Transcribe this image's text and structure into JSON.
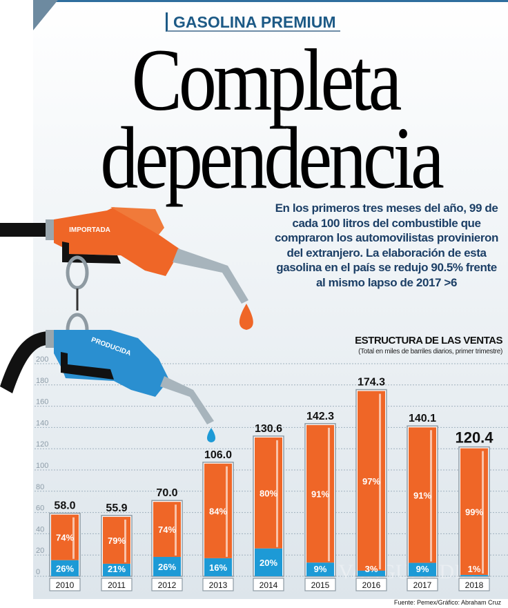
{
  "header": {
    "kicker": "GASOLINA PREMIUM",
    "title_line1": "Completa",
    "title_line2": "dependencia"
  },
  "lede": "En los primeros tres meses del año, 99 de cada 100 litros del combustible que compraron los automovilistas provinieron del extranjero. La elaboración de esta gasolina en el país se redujo 90.5% frente al mismo lapso de 2017 >6",
  "illustration": {
    "pump_imported_label": "IMPORTADA",
    "pump_produced_label": "PRODUCIDA"
  },
  "watermark": "VANGUARDIA",
  "colors": {
    "imported": "#ef6627",
    "produced": "#1d9ad6",
    "text": "#1c3f66"
  },
  "source": "Fuente: Pemex/Gráfico: Abraham Cruz",
  "chart_data": {
    "type": "bar",
    "title": "ESTRUCTURA DE LAS VENTAS",
    "subtitle": "(Total en miles de barriles diarios, primer trimestre)",
    "categories": [
      "2010",
      "2011",
      "2012",
      "2013",
      "2014",
      "2015",
      "2016",
      "2017",
      "2018"
    ],
    "totals": [
      58.0,
      55.9,
      70.0,
      106.0,
      130.6,
      142.3,
      174.3,
      140.1,
      120.4
    ],
    "total_labels": [
      "58.0",
      "55.9",
      "70.0",
      "106.0",
      "130.6",
      "142.3",
      "174.3",
      "140.1",
      "120.4"
    ],
    "series": [
      {
        "name": "Importada",
        "values": [
          74,
          79,
          74,
          84,
          80,
          91,
          97,
          91,
          99
        ],
        "labels": [
          "74%",
          "79%",
          "74%",
          "84%",
          "80%",
          "91%",
          "97%",
          "91%",
          "99%"
        ]
      },
      {
        "name": "Producida",
        "values": [
          26,
          21,
          26,
          16,
          20,
          9,
          3,
          9,
          1
        ],
        "labels": [
          "26%",
          "21%",
          "26%",
          "16%",
          "20%",
          "9%",
          "3%",
          "9%",
          "1%"
        ]
      }
    ],
    "ylim": [
      0,
      200
    ],
    "yticks": [
      "0",
      "20",
      "40",
      "60",
      "80",
      "100",
      "120",
      "140",
      "160",
      "180",
      "200"
    ],
    "grid": true
  }
}
